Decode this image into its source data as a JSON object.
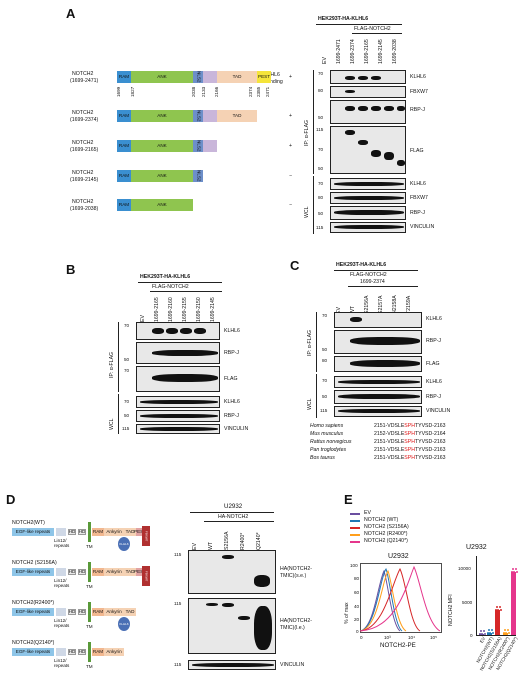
{
  "panels": {
    "A": "A",
    "B": "B",
    "C": "C",
    "D": "D",
    "E": "E"
  },
  "A": {
    "cell_line": "HEK293T-HA-KLHL6",
    "construct": "FLAG-NOTCH2",
    "binding_header": [
      "KLHL6",
      "binding"
    ],
    "lanes": [
      "EV",
      "1699-2471",
      "1699-2374",
      "1699-2165",
      "1699-2145",
      "1699-2038"
    ],
    "constructs": [
      {
        "name": [
          "NOTCH2",
          "(1699-2471)"
        ],
        "binding": "+"
      },
      {
        "name": [
          "NOTCH2",
          "(1699-2374)"
        ],
        "binding": "+"
      },
      {
        "name": [
          "NOTCH2",
          "(1699-2165)"
        ],
        "binding": "+"
      },
      {
        "name": [
          "NOTCH2",
          "(1699-2145)"
        ],
        "binding": "−"
      },
      {
        "name": [
          "NOTCH2",
          "(1699-2038)"
        ],
        "binding": "−"
      }
    ],
    "domains": {
      "ram": "RAM",
      "ank": "ANK",
      "nls": "NLS2",
      "tad": "TAD",
      "pest": "PEST",
      "nls_short": "NLS"
    },
    "positions": [
      "1699",
      "1827",
      "2038",
      "2133",
      "2166",
      "2374",
      "2385",
      "2471"
    ],
    "ip_label": "IP: α-FLAG",
    "wcl_label": "WCL",
    "ip_blots": [
      "KLHL6",
      "FBXW7",
      "RBP-J",
      "FLAG"
    ],
    "wcl_blots": [
      "KLHL6",
      "FBXW7",
      "RBP-J",
      "VINCULIN"
    ],
    "mw_ip": [
      "70",
      "80",
      "50",
      "115",
      "70",
      "50"
    ],
    "mw_wcl": [
      "70",
      "80",
      "50",
      "115"
    ]
  },
  "B": {
    "cell_line": "HEK293T-HA-KLHL6",
    "construct": "FLAG-NOTCH2",
    "lanes": [
      "EV",
      "1699-2165",
      "1699-2160",
      "1699-2155",
      "1699-2150",
      "1699-2145"
    ],
    "ip_label": "IP: α-FLAG",
    "wcl_label": "WCL",
    "ip_blots": [
      "KLHL6",
      "RBP-J",
      "FLAG"
    ],
    "wcl_blots": [
      "KLHL6",
      "RBP-J",
      "VINCULIN"
    ],
    "mw": [
      "70",
      "50",
      "70",
      "70",
      "50",
      "115"
    ]
  },
  "C": {
    "cell_line": "HEK293T-HA-KLHL6",
    "construct": [
      "FLAG-NOTCH2",
      "1699-2374"
    ],
    "lanes": [
      "EV",
      "WT",
      "S2156A",
      "S2157A",
      "H2158A",
      "T2159A"
    ],
    "ip_label": "IP: α-FLAG",
    "wcl_label": "WCL",
    "ip_blots": [
      "KLHL6",
      "RBP-J",
      "FLAG"
    ],
    "wcl_blots": [
      "KLHL6",
      "RBP-J",
      "VINCULIN"
    ],
    "mw": [
      "70",
      "50",
      "80",
      "70",
      "50",
      "115"
    ],
    "alignment": [
      {
        "species": "Homo sapiens",
        "pre": "2151-VDSLE",
        "red": "SPH",
        "post": "TYVSD-2163"
      },
      {
        "species": "Mus musculus",
        "pre": "2152-VDSLE",
        "red": "SPH",
        "post": "TYVSD-2164"
      },
      {
        "species": "Rattus norvegicus",
        "pre": "2151-VDSLE",
        "red": "SPH",
        "post": "TYVSD-2163"
      },
      {
        "species": "Pan troglodytes",
        "pre": "2151-VDSLE",
        "red": "SPH",
        "post": "TYVSD-2163"
      },
      {
        "species": "Bos taurus",
        "pre": "2151-VDSLE",
        "red": "SPH",
        "post": "TYVSD-2163"
      }
    ]
  },
  "D": {
    "cell_line": "U2932",
    "construct": "HA-NOTCH2",
    "lanes": [
      "EV",
      "WT",
      "S2156A",
      "R2400*",
      "Q2140*"
    ],
    "constructs": [
      "NOTCH2(WT)",
      "NOTCH2 (S2156A)",
      "NOTCH2(R2400*)",
      "NOTCH2(Q2140*)"
    ],
    "domain_labels": {
      "egf": "EGF-like repeats",
      "lin": [
        "Lin12/",
        "repeats"
      ],
      "hd": "HD",
      "tm": "TM",
      "ram": "RAM",
      "ankyrin": "Ankyrin",
      "tad": "TAD",
      "pest": "PEST",
      "klhl6": "KLHL6",
      "fbxw7": "FBXW7"
    },
    "blot_labels": [
      [
        "HA(NOTCH2-",
        "TMIC)(s.e.)"
      ],
      [
        "HA(NOTCH2-",
        "TMIC)(l.e.)"
      ],
      [
        "VINCULIN"
      ]
    ],
    "mw": [
      "115",
      "115",
      "115"
    ]
  },
  "E": {
    "legend": [
      {
        "label": "EV",
        "color": "#6b4fa0"
      },
      {
        "label": "NOTCH2 (WT)",
        "color": "#1f77b4"
      },
      {
        "label": "NOTCH2 (S2156A)",
        "color": "#d62728"
      },
      {
        "label": "NOTCH2 (R2400*)",
        "color": "#ff9f1c"
      },
      {
        "label": "NOTCH2 (Q2140*)",
        "color": "#e5368c"
      }
    ],
    "histogram": {
      "title": "U2932",
      "xlabel": "NOTCH2-PE",
      "ylabel": "% of max",
      "xticks": [
        "0",
        "10³",
        "10⁴",
        "10⁵"
      ],
      "yticks": [
        "0",
        "20",
        "40",
        "60",
        "80",
        "100"
      ]
    },
    "chart_data": {
      "type": "bar",
      "title": "U2932",
      "ylabel": "NOTCH2 MFI",
      "categories": [
        "EV",
        "NOTCH2(WT)",
        "NOTCH2(S2156A)",
        "NOTCH2(R2400*)",
        "NOTCH2(Q2140*)"
      ],
      "values": [
        200,
        250,
        3800,
        300,
        9500
      ],
      "ylim": [
        0,
        12000
      ],
      "yticks": [
        "0",
        "5000",
        "10000"
      ],
      "colors": [
        "#6b4fa0",
        "#1f77b4",
        "#d62728",
        "#ff9f1c",
        "#e5368c"
      ]
    }
  }
}
